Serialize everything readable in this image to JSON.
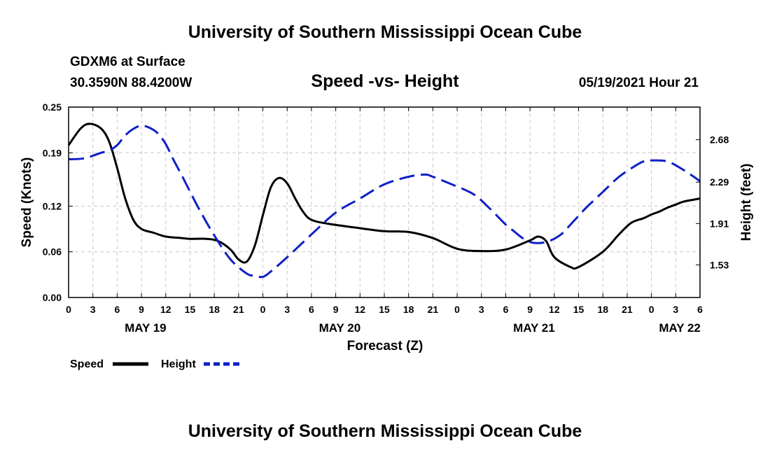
{
  "header": {
    "title_top": "University of Southern Mississippi Ocean Cube",
    "title_bottom": "University of Southern Mississippi Ocean Cube",
    "station": "GDXM6 at Surface",
    "coords": "30.3590N  88.4200W",
    "chart_title": "Speed -vs- Height",
    "datetime": "05/19/2021 Hour 21"
  },
  "legend": {
    "speed_label": "Speed",
    "height_label": "Height"
  },
  "colors": {
    "speed": "#000000",
    "height": "#1020c8"
  },
  "chart_data": {
    "type": "line",
    "title": "Speed -vs- Height",
    "xlabel": "Forecast (Z)",
    "ylabel": "Speed (Knots)",
    "y2label": "Height (feet)",
    "x_unit": "hours since 00Z May 19",
    "xlim": [
      0,
      78
    ],
    "ylim": [
      0,
      0.25
    ],
    "y2lim": [
      1.23,
      2.98
    ],
    "x_ticks": [
      0,
      3,
      6,
      9,
      12,
      15,
      18,
      21,
      24,
      27,
      30,
      33,
      36,
      39,
      42,
      45,
      48,
      51,
      54,
      57,
      60,
      63,
      66,
      69,
      72,
      75,
      78
    ],
    "x_tick_labels": [
      "0",
      "3",
      "6",
      "9",
      "12",
      "15",
      "18",
      "21",
      "0",
      "3",
      "6",
      "9",
      "12",
      "15",
      "18",
      "21",
      "0",
      "3",
      "6",
      "9",
      "12",
      "15",
      "18",
      "21",
      "0",
      "3",
      "6"
    ],
    "date_labels": [
      {
        "x": 9.5,
        "label": "MAY 19"
      },
      {
        "x": 33.5,
        "label": "MAY 20"
      },
      {
        "x": 57.5,
        "label": "MAY 21"
      },
      {
        "x": 75.5,
        "label": "MAY 22"
      }
    ],
    "y_ticks": [
      0.0,
      0.06,
      0.12,
      0.19,
      0.25
    ],
    "y_tick_labels": [
      "0.00",
      "0.06",
      "0.12",
      "0.19",
      "0.25"
    ],
    "y2_ticks": [
      1.53,
      1.91,
      2.29,
      2.68
    ],
    "y2_tick_labels": [
      "1.53",
      "1.91",
      "2.29",
      "2.68"
    ],
    "grid": true,
    "series": [
      {
        "name": "Speed",
        "axis": "left",
        "style": "solid",
        "x": [
          0,
          1.5,
          2.6,
          4,
          5,
          6,
          7,
          8,
          9,
          10.5,
          12,
          14,
          15,
          17,
          18.5,
          20,
          21,
          22,
          23,
          24,
          25,
          26,
          27,
          28,
          29,
          30,
          32,
          36,
          39,
          42,
          45,
          48,
          51,
          54,
          57,
          58,
          59,
          60,
          62,
          63,
          66,
          68,
          69.5,
          71,
          72,
          73,
          74,
          75,
          76,
          78
        ],
        "y": [
          0.2,
          0.222,
          0.228,
          0.222,
          0.205,
          0.17,
          0.13,
          0.102,
          0.09,
          0.085,
          0.08,
          0.078,
          0.077,
          0.077,
          0.074,
          0.063,
          0.05,
          0.047,
          0.068,
          0.108,
          0.145,
          0.157,
          0.15,
          0.13,
          0.112,
          0.102,
          0.097,
          0.091,
          0.087,
          0.086,
          0.078,
          0.064,
          0.061,
          0.063,
          0.075,
          0.08,
          0.074,
          0.053,
          0.04,
          0.04,
          0.06,
          0.083,
          0.098,
          0.104,
          0.109,
          0.113,
          0.118,
          0.122,
          0.126,
          0.13
        ]
      },
      {
        "name": "Height",
        "axis": "right",
        "style": "dashed",
        "x": [
          0,
          2,
          4,
          5,
          6,
          7,
          8,
          9,
          10,
          11,
          12,
          13,
          14,
          16,
          18,
          20,
          22,
          23,
          24,
          25,
          27,
          30,
          33,
          36,
          39,
          42,
          44,
          45,
          47,
          50,
          52,
          54,
          55,
          56,
          57,
          58,
          59,
          60,
          61,
          62,
          63,
          64,
          66,
          68,
          70,
          71,
          72,
          74,
          76,
          78
        ],
        "y": [
          2.5,
          2.51,
          2.56,
          2.58,
          2.63,
          2.72,
          2.78,
          2.81,
          2.79,
          2.74,
          2.64,
          2.49,
          2.35,
          2.06,
          1.8,
          1.58,
          1.45,
          1.43,
          1.42,
          1.47,
          1.6,
          1.81,
          2.01,
          2.14,
          2.27,
          2.34,
          2.36,
          2.34,
          2.28,
          2.18,
          2.05,
          1.9,
          1.84,
          1.78,
          1.74,
          1.73,
          1.74,
          1.77,
          1.82,
          1.9,
          1.98,
          2.06,
          2.2,
          2.34,
          2.44,
          2.48,
          2.49,
          2.48,
          2.4,
          2.3
        ]
      }
    ]
  }
}
